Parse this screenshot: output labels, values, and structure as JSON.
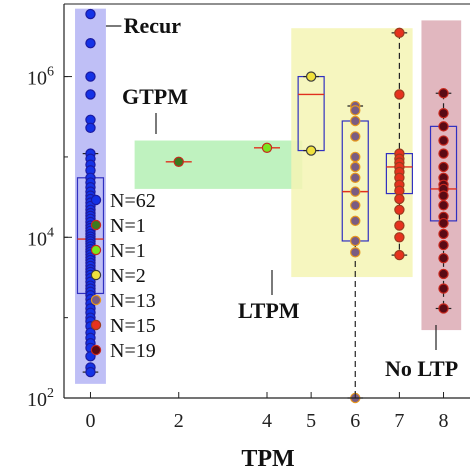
{
  "chart_data": {
    "type": "scatter",
    "xlabel": "TPM",
    "ylabel": "",
    "x_ticks": [
      0,
      2,
      4,
      5,
      6,
      7,
      8
    ],
    "x_tick_labels": [
      "0",
      "2",
      "4",
      "5",
      "6",
      "7",
      "8"
    ],
    "yscale": "log",
    "ylim": [
      100,
      8000000
    ],
    "y_tick_labels": [
      {
        "value": 100,
        "base": "10",
        "exp": "2"
      },
      {
        "value": 10000,
        "base": "10",
        "exp": "4"
      },
      {
        "value": 1000000,
        "base": "10",
        "exp": "6"
      }
    ],
    "grid": false,
    "legend": {
      "placement": "center-left",
      "entries": [
        {
          "label": "N=62",
          "color": "#1432e6"
        },
        {
          "label": "N=1",
          "color": "#3c7a1e"
        },
        {
          "label": "N=1",
          "color": "#78e61e"
        },
        {
          "label": "N=2",
          "color": "#f0e13c"
        },
        {
          "label": "N=13",
          "color": "#7a5c82"
        },
        {
          "label": "N=15",
          "color": "#e6321e"
        },
        {
          "label": "N=19",
          "color": "#5a0a14"
        }
      ]
    },
    "annotations": [
      {
        "text": "Recur",
        "color": "#1432e6"
      },
      {
        "text": "GTPM",
        "color": "#3c7a1e"
      },
      {
        "text": "LTPM",
        "color": "#f0e13c"
      },
      {
        "text": "No LTP",
        "color": "#5a0a14"
      }
    ],
    "regions": [
      {
        "name": "Recur",
        "x_range": [
          -0.35,
          0.35
        ],
        "y_range": [
          150,
          7000000
        ],
        "color": "#b4b4f5"
      },
      {
        "name": "GTPM",
        "x_range": [
          1.0,
          4.8
        ],
        "y_range": [
          40000,
          160000
        ],
        "color": "#b4f0b4"
      },
      {
        "name": "LTPM",
        "x_range": [
          4.55,
          7.3
        ],
        "y_range": [
          3200,
          4000000
        ],
        "color": "#f5f5b4"
      },
      {
        "name": "No LTP",
        "x_range": [
          7.5,
          8.4
        ],
        "y_range": [
          700,
          5000000
        ],
        "color": "#dcaab4"
      }
    ],
    "series": [
      {
        "x": 0,
        "color": "#1432e6",
        "edge": "#1a1aa0",
        "box": {
          "q1": 2000,
          "median": 9500,
          "q3": 55000,
          "wlo": 210,
          "whi": 110000
        },
        "values": [
          6000000,
          2600000,
          1000000,
          600000,
          290000,
          230000,
          110000,
          95000,
          80000,
          68000,
          55000,
          48000,
          42000,
          37000,
          33000,
          30000,
          27000,
          24500,
          22000,
          20000,
          18500,
          17000,
          15500,
          14000,
          13000,
          12000,
          11000,
          10200,
          9500,
          8900,
          8300,
          7700,
          7100,
          6600,
          6100,
          5600,
          5200,
          4800,
          4400,
          4000,
          3700,
          3400,
          3100,
          2800,
          2500,
          2300,
          2100,
          1900,
          1700,
          1500,
          1300,
          1150,
          1000,
          900,
          780,
          650,
          560,
          480,
          420,
          330,
          240,
          210
        ]
      },
      {
        "x": 2,
        "color": "#3c7a1e",
        "edge": "#c8281e",
        "box": {
          "q1": 87000,
          "median": 87000,
          "q3": 87000,
          "wlo": 87000,
          "whi": 87000
        },
        "values": [
          87000
        ]
      },
      {
        "x": 4,
        "color": "#78e61e",
        "edge": "#c8281e",
        "box": {
          "q1": 130000,
          "median": 130000,
          "q3": 130000,
          "wlo": 130000,
          "whi": 130000
        },
        "values": [
          130000
        ]
      },
      {
        "x": 5,
        "color": "#f0e13c",
        "edge": "#3c3c3c",
        "box": {
          "q1": 120000,
          "median": 600000,
          "q3": 1000000,
          "wlo": 120000,
          "whi": 1000000
        },
        "values": [
          1000000,
          120000
        ]
      },
      {
        "x": 6,
        "color": "#7a5c82",
        "edge": "#e6961e",
        "box": {
          "q1": 9000,
          "median": 37000,
          "q3": 280000,
          "wlo": 100,
          "whi": 430000
        },
        "values": [
          430000,
          380000,
          280000,
          180000,
          100000,
          75000,
          55000,
          37000,
          25000,
          16000,
          9000,
          6500,
          100
        ]
      },
      {
        "x": 7,
        "color": "#e6321e",
        "edge": "#9a3c1e",
        "box": {
          "q1": 35000,
          "median": 75000,
          "q3": 110000,
          "wlo": 6000,
          "whi": 3500000
        },
        "values": [
          3500000,
          600000,
          110000,
          95000,
          85000,
          75000,
          65000,
          55000,
          45000,
          38000,
          30000,
          22000,
          14000,
          10000,
          6000
        ]
      },
      {
        "x": 8,
        "color": "#5a0a14",
        "edge": "#c8281e",
        "box": {
          "q1": 16000,
          "median": 40000,
          "q3": 240000,
          "wlo": 1300,
          "whi": 620000
        },
        "values": [
          620000,
          350000,
          240000,
          160000,
          110000,
          75000,
          55000,
          45000,
          40000,
          33000,
          25000,
          18000,
          15000,
          11000,
          8000,
          5500,
          3500,
          2300,
          1300
        ]
      }
    ]
  }
}
